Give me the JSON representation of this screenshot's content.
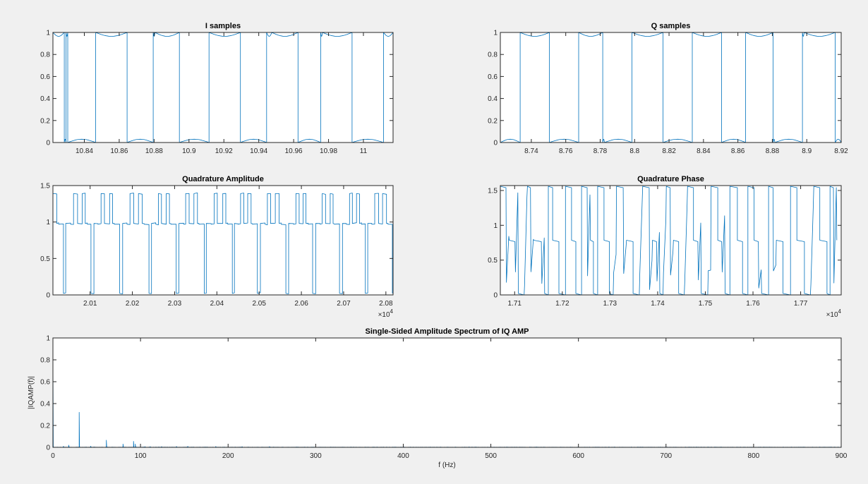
{
  "window": {
    "background": "#f0f0f0"
  },
  "colors": {
    "series": "#0072bd",
    "axis": "#262626",
    "plot_bg": "#ffffff"
  },
  "chart_data": [
    {
      "id": "i_samples",
      "type": "line",
      "title": "I samples",
      "xlabel": "",
      "ylabel": "",
      "xlim": [
        10.822,
        11.017
      ],
      "ylim": [
        0,
        1
      ],
      "xticks": [
        10.84,
        10.86,
        10.88,
        10.9,
        10.92,
        10.94,
        10.96,
        10.98,
        11
      ],
      "xtick_labels": [
        "10.84",
        "10.86",
        "10.88",
        "10.9",
        "10.92",
        "10.94",
        "10.96",
        "10.98",
        "11"
      ],
      "yticks": [
        0,
        0.2,
        0.4,
        0.6,
        0.8,
        1
      ],
      "ytick_labels": [
        "0",
        "0.2",
        "0.4",
        "0.6",
        "0.8",
        "1"
      ],
      "x_exponent": "",
      "grid": false,
      "description": "Square-wave-like I samples alternating between ~1 and ~0 levels with small ripples",
      "transitions_x": [
        10.822,
        10.8285,
        10.8295,
        10.8305,
        10.8465,
        10.8645,
        10.8795,
        10.8805,
        10.8945,
        10.9115,
        10.9295,
        10.9445,
        10.9475,
        10.9625,
        10.9755,
        10.9765,
        10.9935,
        11.0115,
        11.017
      ],
      "levels": [
        1,
        0,
        1,
        0,
        1,
        0,
        1,
        1,
        0,
        1,
        0,
        1,
        1,
        0,
        1,
        1,
        0,
        1
      ]
    },
    {
      "id": "q_samples",
      "type": "line",
      "title": "Q samples",
      "xlabel": "",
      "ylabel": "",
      "xlim": [
        8.722,
        8.92
      ],
      "ylim": [
        0,
        1
      ],
      "xticks": [
        8.74,
        8.76,
        8.78,
        8.8,
        8.82,
        8.84,
        8.86,
        8.88,
        8.9,
        8.92
      ],
      "xtick_labels": [
        "8.74",
        "8.76",
        "8.78",
        "8.8",
        "8.82",
        "8.84",
        "8.86",
        "8.88",
        "8.9",
        "8.92"
      ],
      "yticks": [
        0,
        0.2,
        0.4,
        0.6,
        0.8,
        1
      ],
      "ytick_labels": [
        "0",
        "0.2",
        "0.4",
        "0.6",
        "0.8",
        "1"
      ],
      "x_exponent": "",
      "grid": false,
      "description": "Square-wave-like Q samples alternating between ~0 and ~1 levels",
      "transitions_x": [
        8.722,
        8.7335,
        8.7505,
        8.7675,
        8.7815,
        8.7825,
        8.7985,
        8.8165,
        8.8335,
        8.8505,
        8.8645,
        8.8805,
        8.8815,
        8.8975,
        8.8985,
        8.9165,
        8.92
      ],
      "levels": [
        0,
        1,
        0,
        1,
        0,
        0,
        1,
        0,
        1,
        0,
        1,
        0,
        0,
        1,
        1,
        0
      ]
    },
    {
      "id": "quadrature_amplitude",
      "type": "line",
      "title": "Quadrature Amplitude",
      "xlabel": "",
      "ylabel": "",
      "xlim": [
        20012,
        20817
      ],
      "ylim": [
        0,
        1.5
      ],
      "xticks": [
        20100,
        20200,
        20300,
        20400,
        20500,
        20600,
        20700,
        20800
      ],
      "xtick_labels": [
        "2.01",
        "2.02",
        "2.03",
        "2.04",
        "2.05",
        "2.06",
        "2.07",
        "2.08"
      ],
      "yticks": [
        0,
        0.5,
        1,
        1.5
      ],
      "ytick_labels": [
        "0",
        "0.5",
        "1",
        "1.5"
      ],
      "x_exponent": "×10^4",
      "grid": false,
      "description": "Amplitude switching between three levels ~1.4, ~1.0 and ~0.02 with period ~60 samples",
      "levels_observed": [
        1.4,
        1.0,
        0.02
      ]
    },
    {
      "id": "quadrature_phase",
      "type": "line",
      "title": "Quadrature Phase",
      "xlabel": "",
      "ylabel": "",
      "xlim": [
        17070,
        17785
      ],
      "ylim": [
        0,
        1.5708
      ],
      "xticks": [
        17100,
        17200,
        17300,
        17400,
        17500,
        17600,
        17700
      ],
      "xtick_labels": [
        "1.71",
        "1.72",
        "1.73",
        "1.74",
        "1.75",
        "1.76",
        "1.77"
      ],
      "yticks": [
        0,
        0.5,
        1,
        1.5
      ],
      "ytick_labels": [
        "0",
        "0.5",
        "1",
        "1.5"
      ],
      "x_exponent": "×10^4",
      "grid": false,
      "description": "Phase jumping between ~1.57, ~0.78 and ~0 with sawtooth transients",
      "levels_observed": [
        1.5708,
        0.785,
        0.02
      ]
    },
    {
      "id": "spectrum",
      "type": "line",
      "title": "Single-Sided Amplitude Spectrum of IQ AMP",
      "xlabel": "f (Hz)",
      "ylabel": "|IQAMP(f)|",
      "xlim": [
        0,
        900
      ],
      "ylim": [
        0,
        1
      ],
      "xticks": [
        0,
        100,
        200,
        300,
        400,
        500,
        600,
        700,
        800,
        900
      ],
      "xtick_labels": [
        "0",
        "100",
        "200",
        "300",
        "400",
        "500",
        "600",
        "700",
        "800",
        "900"
      ],
      "yticks": [
        0,
        0.2,
        0.4,
        0.6,
        0.8,
        1
      ],
      "ytick_labels": [
        "0",
        "0.2",
        "0.4",
        "0.6",
        "0.8",
        "1"
      ],
      "x_exponent": "",
      "grid": false,
      "peaks": [
        {
          "f": 0,
          "amp": 0.84
        },
        {
          "f": 12,
          "amp": 0.01
        },
        {
          "f": 18,
          "amp": 0.02
        },
        {
          "f": 30,
          "amp": 0.32
        },
        {
          "f": 43,
          "amp": 0.01
        },
        {
          "f": 61,
          "amp": 0.065
        },
        {
          "f": 80,
          "amp": 0.03
        },
        {
          "f": 92,
          "amp": 0.055
        },
        {
          "f": 94,
          "amp": 0.03
        },
        {
          "f": 105,
          "amp": 0.006
        },
        {
          "f": 111,
          "amp": 0.006
        },
        {
          "f": 124,
          "amp": 0.006
        },
        {
          "f": 141,
          "amp": 0.008
        },
        {
          "f": 154,
          "amp": 0.01
        },
        {
          "f": 186,
          "amp": 0.008
        },
        {
          "f": 216,
          "amp": 0.005
        },
        {
          "f": 247,
          "amp": 0.006
        }
      ],
      "noise_floor": 0.002
    }
  ]
}
